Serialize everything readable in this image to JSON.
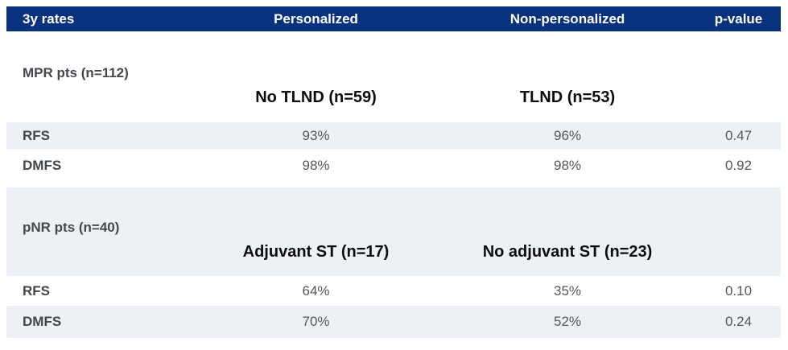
{
  "chart_data": {
    "type": "table",
    "title": "3y rates",
    "columns": [
      "3y rates",
      "Personalized",
      "Non-personalized",
      "p-value"
    ],
    "groups": [
      {
        "group": "MPR pts (n=112)",
        "subcolumns": [
          "No TLND (n=59)",
          "TLND (n=53)"
        ],
        "rows": [
          {
            "metric": "RFS",
            "personalized": "93%",
            "non_personalized": "96%",
            "p_value": "0.47"
          },
          {
            "metric": "DMFS",
            "personalized": "98%",
            "non_personalized": "98%",
            "p_value": "0.92"
          }
        ]
      },
      {
        "group": "pNR pts (n=40)",
        "subcolumns": [
          "Adjuvant ST (n=17)",
          "No adjuvant ST (n=23)"
        ],
        "rows": [
          {
            "metric": "RFS",
            "personalized": "64%",
            "non_personalized": "35%",
            "p_value": "0.10"
          },
          {
            "metric": "DMFS",
            "personalized": "70%",
            "non_personalized": "52%",
            "p_value": "0.24"
          }
        ]
      }
    ]
  },
  "table": {
    "header": {
      "col1": "3y rates",
      "col2": "Personalized",
      "col3": "Non-personalized",
      "col4": "p-value"
    },
    "sections": [
      {
        "group_label": "MPR pts (n=112)",
        "subheaders": {
          "col2": "No TLND (n=59)",
          "col3": "TLND (n=53)"
        },
        "rows": [
          {
            "label": "RFS",
            "col2": "93%",
            "col3": "96%",
            "p": "0.47"
          },
          {
            "label": "DMFS",
            "col2": "98%",
            "col3": "98%",
            "p": "0.92"
          }
        ]
      },
      {
        "group_label": "pNR pts (n=40)",
        "subheaders": {
          "col2": "Adjuvant ST (n=17)",
          "col3": "No adjuvant ST (n=23)"
        },
        "rows": [
          {
            "label": "RFS",
            "col2": "64%",
            "col3": "35%",
            "p": "0.10"
          },
          {
            "label": "DMFS",
            "col2": "70%",
            "col3": "52%",
            "p": "0.24"
          }
        ]
      }
    ],
    "colors": {
      "header_bg": "#08327e",
      "header_text": "#ffffff",
      "shaded_row_bg": "#edf0f5",
      "group_label_text": "#45484d",
      "subheader_text": "#0c0c0d",
      "value_text": "#54575c"
    }
  }
}
